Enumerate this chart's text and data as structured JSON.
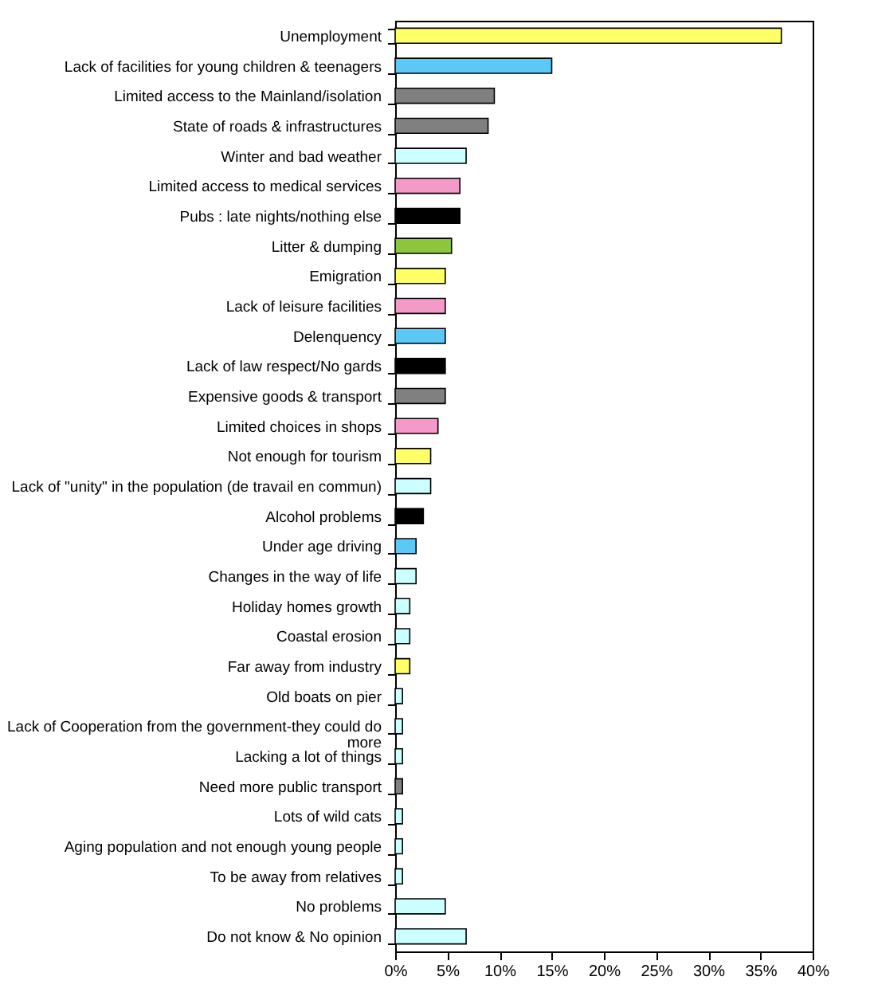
{
  "chart_data": {
    "type": "bar",
    "orientation": "horizontal",
    "categories": [
      "Unemployment",
      "Lack of facilities for young children & teenagers",
      "Limited access to the Mainland/isolation",
      "State of roads & infrastructures",
      "Winter and bad weather",
      "Limited access to medical services",
      "Pubs : late nights/nothing else",
      "Litter & dumping",
      "Emigration",
      "Lack of leisure facilities",
      "Delenquency",
      "Lack of law respect/No gards",
      "Expensive goods & transport",
      "Limited choices in shops",
      "Not enough for tourism",
      "Lack of \"unity\" in the population (de travail en commun)",
      "Alcohol problems",
      "Under age driving",
      "Changes in the way of life",
      "Holiday homes growth",
      "Coastal erosion",
      "Far away from industry",
      "Old boats on pier",
      "Lack of Cooperation from the government-they could do more",
      "Lacking a lot of things",
      "Need more public transport",
      "Lots of wild cats",
      "Aging population and not enough young people",
      "To be away from relatives",
      "No problems",
      "Do not know & No opinion"
    ],
    "values": [
      37.0,
      15.0,
      9.5,
      8.9,
      6.8,
      6.2,
      6.2,
      5.4,
      4.8,
      4.8,
      4.8,
      4.8,
      4.8,
      4.1,
      3.4,
      3.4,
      2.7,
      2.0,
      2.0,
      1.4,
      1.4,
      1.4,
      0.7,
      0.7,
      0.7,
      0.7,
      0.7,
      0.7,
      0.7,
      4.8,
      6.8
    ],
    "colors": [
      "#ffff66",
      "#5bc8f5",
      "#808080",
      "#808080",
      "#ccffff",
      "#f49ac8",
      "#000000",
      "#8cc63f",
      "#ffff66",
      "#f49ac8",
      "#5bc8f5",
      "#000000",
      "#808080",
      "#f49ac8",
      "#ffff66",
      "#ccffff",
      "#000000",
      "#5bc8f5",
      "#ccffff",
      "#ccffff",
      "#ccffff",
      "#ffff66",
      "#ccffff",
      "#ccffff",
      "#ccffff",
      "#808080",
      "#ccffff",
      "#ccffff",
      "#ccffff",
      "#ccffff",
      "#ccffff"
    ],
    "xlim": [
      0,
      40
    ],
    "xticks": [
      {
        "value": 0,
        "label": "0%"
      },
      {
        "value": 5,
        "label": "5%"
      },
      {
        "value": 10,
        "label": "10%"
      },
      {
        "value": 15,
        "label": "15%"
      },
      {
        "value": 20,
        "label": "20%"
      },
      {
        "value": 25,
        "label": "25%"
      },
      {
        "value": 30,
        "label": "30%"
      },
      {
        "value": 35,
        "label": "35%"
      },
      {
        "value": 40,
        "label": "40%"
      }
    ]
  }
}
